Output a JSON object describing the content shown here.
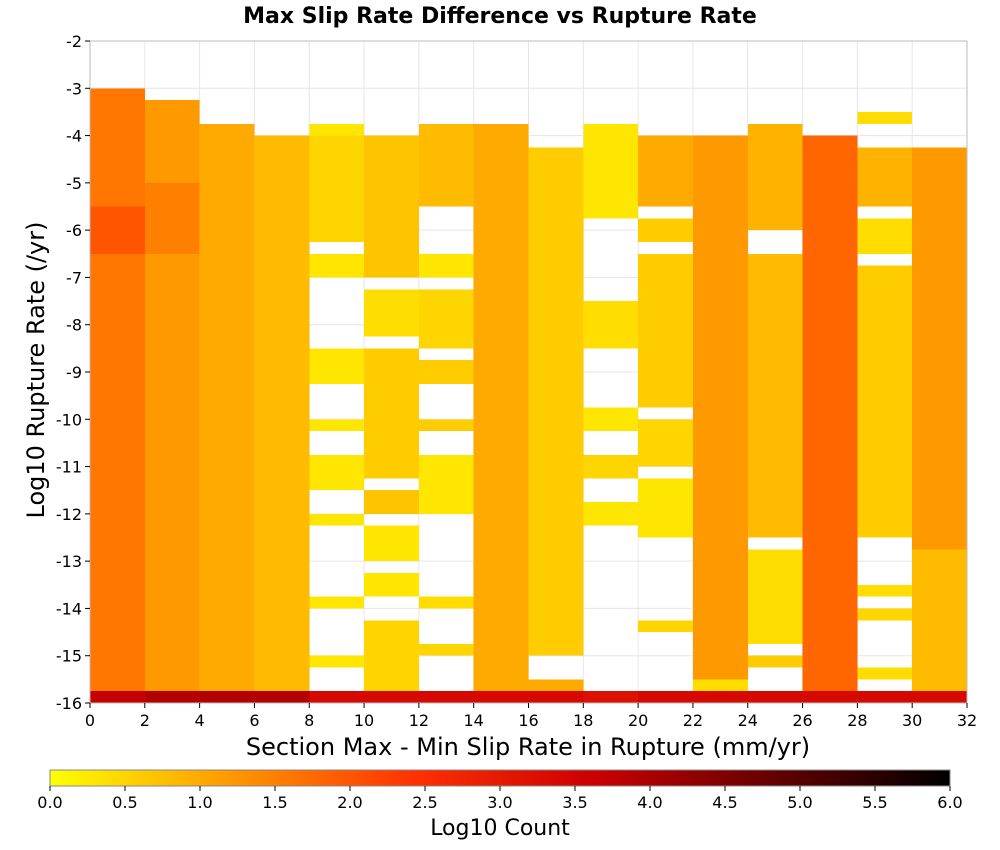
{
  "chart_data": {
    "type": "heatmap",
    "title": "Max Slip Rate Difference vs Rupture Rate",
    "xlabel": "Section Max - Min Slip Rate in Rupture (mm/yr)",
    "ylabel": "Log10 Rupture Rate (/yr)",
    "xlim": [
      0,
      32
    ],
    "ylim": [
      -16,
      -2
    ],
    "x_ticks": [
      "0",
      "2",
      "4",
      "6",
      "8",
      "10",
      "12",
      "14",
      "16",
      "18",
      "20",
      "22",
      "24",
      "26",
      "28",
      "30",
      "32"
    ],
    "y_ticks": [
      "-2",
      "-3",
      "-4",
      "-5",
      "-6",
      "-7",
      "-8",
      "-9",
      "-10",
      "-11",
      "-12",
      "-13",
      "-14",
      "-15",
      "-16"
    ],
    "x_bin_width": 2,
    "y_bin_height": 0.25,
    "grid": true,
    "colorbar": {
      "label": "Log10 Count",
      "range": [
        0.0,
        6.0
      ],
      "ticks": [
        "0.0",
        "0.5",
        "1.0",
        "1.5",
        "2.0",
        "2.5",
        "3.0",
        "3.5",
        "4.0",
        "4.5",
        "5.0",
        "5.5",
        "6.0"
      ],
      "colors": [
        "#ffff00",
        "#ff9900",
        "#ff3300",
        "#cc0000",
        "#660000",
        "#000000"
      ]
    },
    "columns": [
      {
        "x_start": 0,
        "segments": [
          [
            -16,
            -15.75,
            3.7
          ],
          [
            -15.75,
            -3.0,
            1.6
          ],
          [
            -6.5,
            -5.5,
            2.0
          ]
        ]
      },
      {
        "x_start": 2,
        "segments": [
          [
            -16,
            -15.75,
            3.9
          ],
          [
            -15.75,
            -3.25,
            1.2
          ],
          [
            -6.5,
            -5.0,
            1.5
          ]
        ]
      },
      {
        "x_start": 4,
        "segments": [
          [
            -16,
            -15.75,
            3.9
          ],
          [
            -15.75,
            -3.75,
            1.0
          ]
        ]
      },
      {
        "x_start": 6,
        "segments": [
          [
            -16,
            -15.75,
            3.9
          ],
          [
            -15.75,
            -4.0,
            0.8
          ]
        ]
      },
      {
        "x_start": 8,
        "segments": [
          [
            -16,
            -15.75,
            3.4
          ],
          [
            -15.25,
            -15.0,
            0.3
          ],
          [
            -14.0,
            -13.75,
            0.3
          ],
          [
            -12.25,
            -12.0,
            0.3
          ],
          [
            -11.5,
            -10.75,
            0.3
          ],
          [
            -10.25,
            -10.0,
            0.3
          ],
          [
            -9.25,
            -8.5,
            0.3
          ],
          [
            -7.0,
            -6.5,
            0.3
          ],
          [
            -6.25,
            -4.0,
            0.5
          ],
          [
            -4.0,
            -3.75,
            0.3
          ]
        ]
      },
      {
        "x_start": 10,
        "segments": [
          [
            -16,
            -15.75,
            3.4
          ],
          [
            -15.75,
            -14.25,
            0.5
          ],
          [
            -13.75,
            -13.25,
            0.3
          ],
          [
            -13.0,
            -12.25,
            0.3
          ],
          [
            -12.0,
            -11.5,
            0.7
          ],
          [
            -11.25,
            -8.5,
            0.6
          ],
          [
            -8.25,
            -7.25,
            0.4
          ],
          [
            -7.0,
            -4.0,
            0.7
          ]
        ]
      },
      {
        "x_start": 12,
        "segments": [
          [
            -16,
            -15.75,
            3.4
          ],
          [
            -15.0,
            -14.75,
            0.5
          ],
          [
            -14.0,
            -13.75,
            0.4
          ],
          [
            -12.0,
            -10.75,
            0.3
          ],
          [
            -10.25,
            -10.0,
            0.6
          ],
          [
            -9.25,
            -8.75,
            0.6
          ],
          [
            -8.5,
            -7.25,
            0.5
          ],
          [
            -7.0,
            -6.5,
            0.3
          ],
          [
            -5.5,
            -3.75,
            0.8
          ]
        ]
      },
      {
        "x_start": 14,
        "segments": [
          [
            -16,
            -15.75,
            3.4
          ],
          [
            -15.75,
            -3.75,
            1.0
          ]
        ]
      },
      {
        "x_start": 16,
        "segments": [
          [
            -16,
            -15.75,
            3.4
          ],
          [
            -15.75,
            -15.5,
            1.0
          ],
          [
            -15.0,
            -4.25,
            0.6
          ]
        ]
      },
      {
        "x_start": 18,
        "segments": [
          [
            -16,
            -15.75,
            3.2
          ],
          [
            -12.25,
            -11.75,
            0.3
          ],
          [
            -11.25,
            -10.75,
            0.5
          ],
          [
            -10.25,
            -9.75,
            0.3
          ],
          [
            -8.5,
            -7.5,
            0.4
          ],
          [
            -5.75,
            -3.75,
            0.3
          ]
        ]
      },
      {
        "x_start": 20,
        "segments": [
          [
            -16,
            -15.75,
            3.4
          ],
          [
            -14.5,
            -14.25,
            0.5
          ],
          [
            -12.5,
            -11.25,
            0.3
          ],
          [
            -11.0,
            -10.0,
            0.5
          ],
          [
            -9.75,
            -6.5,
            0.6
          ],
          [
            -6.25,
            -5.75,
            0.6
          ],
          [
            -5.5,
            -4.0,
            1.0
          ]
        ]
      },
      {
        "x_start": 22,
        "segments": [
          [
            -16,
            -15.75,
            3.4
          ],
          [
            -15.75,
            -15.5,
            0.4
          ],
          [
            -15.5,
            -4.0,
            1.2
          ]
        ]
      },
      {
        "x_start": 24,
        "segments": [
          [
            -16,
            -15.75,
            3.4
          ],
          [
            -15.25,
            -15.0,
            0.6
          ],
          [
            -14.75,
            -12.75,
            0.4
          ],
          [
            -12.5,
            -6.5,
            0.8
          ],
          [
            -6.0,
            -3.75,
            0.9
          ]
        ]
      },
      {
        "x_start": 26,
        "segments": [
          [
            -16,
            -15.75,
            3.4
          ],
          [
            -15.75,
            -4.0,
            1.8
          ]
        ]
      },
      {
        "x_start": 28,
        "segments": [
          [
            -16,
            -15.75,
            3.4
          ],
          [
            -15.5,
            -15.25,
            0.4
          ],
          [
            -14.25,
            -14.0,
            0.5
          ],
          [
            -13.75,
            -13.5,
            0.4
          ],
          [
            -12.5,
            -6.75,
            0.6
          ],
          [
            -6.5,
            -5.75,
            0.4
          ],
          [
            -5.5,
            -4.25,
            0.9
          ],
          [
            -3.75,
            -3.5,
            0.4
          ]
        ]
      },
      {
        "x_start": 30,
        "segments": [
          [
            -16,
            -15.75,
            3.4
          ],
          [
            -15.75,
            -12.75,
            0.8
          ],
          [
            -12.75,
            -4.25,
            1.2
          ]
        ]
      }
    ]
  }
}
